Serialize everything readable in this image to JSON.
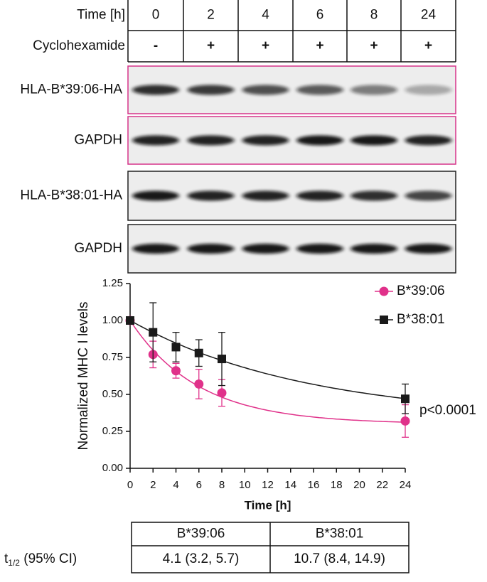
{
  "blot": {
    "header": {
      "rows": [
        {
          "label": "Time [h]",
          "cells": [
            "0",
            "2",
            "4",
            "6",
            "8",
            "24"
          ]
        },
        {
          "label": "Cyclohexamide",
          "cells": [
            "-",
            "+",
            "+",
            "+",
            "+",
            "+"
          ]
        }
      ]
    },
    "panels": [
      {
        "label": "HLA-B*39:06-HA",
        "border": "#d6338a"
      },
      {
        "label": "GAPDH",
        "border": "#d6338a"
      },
      {
        "label": "HLA-B*38:01-HA",
        "border": "#222222"
      },
      {
        "label": "GAPDH",
        "border": "#222222"
      }
    ]
  },
  "chart_data": {
    "type": "scatter",
    "y_label": "Normalized MHC I levels",
    "x_label": "Time [h]",
    "xlim": [
      0,
      24
    ],
    "xticks": [
      0,
      2,
      4,
      6,
      8,
      10,
      12,
      14,
      16,
      18,
      20,
      22,
      24
    ],
    "ylim": [
      0,
      1.25
    ],
    "yticks": [
      {
        "value": 0,
        "label": "0.00"
      },
      {
        "value": 0.25,
        "label": "0.25"
      },
      {
        "value": 0.5,
        "label": "0.50"
      },
      {
        "value": 0.75,
        "label": "0.75"
      },
      {
        "value": 1,
        "label": "1.00"
      },
      {
        "value": 1.25,
        "label": "1.25"
      }
    ],
    "legend": "upper right",
    "annotation": "p<0.0001",
    "series": [
      {
        "name": "B*39:06",
        "color": "#e0318a",
        "marker": "circle",
        "x": [
          0,
          2,
          4,
          6,
          8,
          24
        ],
        "values": [
          1.0,
          0.77,
          0.66,
          0.57,
          0.51,
          0.32
        ],
        "errors": [
          0,
          0.09,
          0.05,
          0.1,
          0.09,
          0.11
        ],
        "fit": {
          "plateau": 0.3,
          "half_life": 4.1
        }
      },
      {
        "name": "B*38:01",
        "color": "#1a1a1a",
        "marker": "square",
        "x": [
          0,
          2,
          4,
          6,
          8,
          24
        ],
        "values": [
          1.0,
          0.92,
          0.82,
          0.78,
          0.74,
          0.47
        ],
        "errors": [
          0,
          0.2,
          0.1,
          0.09,
          0.18,
          0.1
        ],
        "fit": {
          "plateau": 0.33,
          "half_life": 10.7
        }
      }
    ]
  },
  "table": {
    "header": [
      "B*39:06",
      "B*38:01"
    ],
    "row_label": {
      "main": "t",
      "sub": "1/2",
      "rest": " (95% CI)"
    },
    "cells": [
      "4.1 (3.2, 5.7)",
      "10.7 (8.4, 14.9)"
    ]
  }
}
